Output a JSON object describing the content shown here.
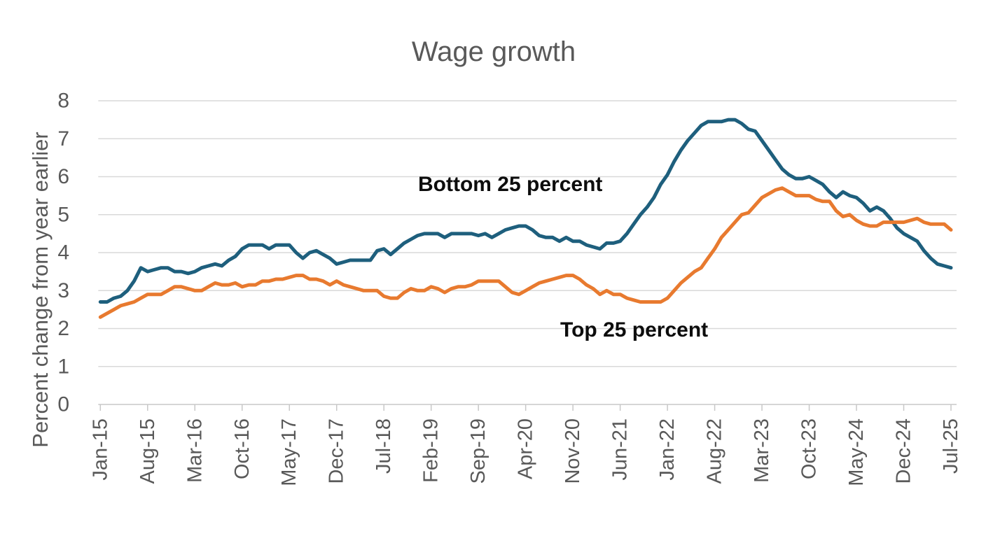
{
  "chart_data": {
    "type": "line",
    "title": "Wage growth",
    "ylabel": "Percent change from year earlier",
    "ylim": [
      0,
      8
    ],
    "y_ticks": [
      0,
      1,
      2,
      3,
      4,
      5,
      6,
      7,
      8
    ],
    "x_start": "Jan-2015",
    "x_end": "Jul-2025",
    "x_frequency": "monthly",
    "x_tick_labels": [
      "Jan-15",
      "Aug-15",
      "Mar-16",
      "Oct-16",
      "May-17",
      "Dec-17",
      "Jul-18",
      "Feb-19",
      "Sep-19",
      "Apr-20",
      "Nov-20",
      "Jun-21",
      "Jan-22",
      "Aug-22",
      "Mar-23",
      "Oct-23",
      "May-24",
      "Dec-24",
      "Jul-25"
    ],
    "x_tick_step_months": 7,
    "grid": "horizontal-only",
    "legend_position": "inline-annotations",
    "series": [
      {
        "name": "Bottom 25 percent",
        "color": "#1e5f7d",
        "values": [
          2.7,
          2.7,
          2.8,
          2.85,
          3.0,
          3.25,
          3.6,
          3.5,
          3.55,
          3.6,
          3.6,
          3.5,
          3.5,
          3.45,
          3.5,
          3.6,
          3.65,
          3.7,
          3.65,
          3.8,
          3.9,
          4.1,
          4.2,
          4.2,
          4.2,
          4.1,
          4.2,
          4.2,
          4.2,
          4.0,
          3.85,
          4.0,
          4.05,
          3.95,
          3.85,
          3.7,
          3.75,
          3.8,
          3.8,
          3.8,
          3.8,
          4.05,
          4.1,
          3.95,
          4.1,
          4.25,
          4.35,
          4.45,
          4.5,
          4.5,
          4.5,
          4.4,
          4.5,
          4.5,
          4.5,
          4.5,
          4.45,
          4.5,
          4.4,
          4.5,
          4.6,
          4.65,
          4.7,
          4.7,
          4.6,
          4.45,
          4.4,
          4.4,
          4.3,
          4.4,
          4.3,
          4.3,
          4.2,
          4.15,
          4.1,
          4.25,
          4.25,
          4.3,
          4.5,
          4.75,
          5.0,
          5.2,
          5.45,
          5.8,
          6.05,
          6.4,
          6.7,
          6.95,
          7.15,
          7.35,
          7.45,
          7.45,
          7.45,
          7.5,
          7.5,
          7.4,
          7.25,
          7.2,
          6.95,
          6.7,
          6.45,
          6.2,
          6.05,
          5.95,
          5.95,
          6.0,
          5.9,
          5.8,
          5.6,
          5.45,
          5.6,
          5.5,
          5.45,
          5.3,
          5.1,
          5.2,
          5.1,
          4.9,
          4.65,
          4.5,
          4.4,
          4.3,
          4.05,
          3.85,
          3.7,
          3.65,
          3.6
        ]
      },
      {
        "name": "Top 25 percent",
        "color": "#e87a2f",
        "values": [
          2.3,
          2.4,
          2.5,
          2.6,
          2.65,
          2.7,
          2.8,
          2.9,
          2.9,
          2.9,
          3.0,
          3.1,
          3.1,
          3.05,
          3.0,
          3.0,
          3.1,
          3.2,
          3.15,
          3.15,
          3.2,
          3.1,
          3.15,
          3.15,
          3.25,
          3.25,
          3.3,
          3.3,
          3.35,
          3.4,
          3.4,
          3.3,
          3.3,
          3.25,
          3.15,
          3.25,
          3.15,
          3.1,
          3.05,
          3.0,
          3.0,
          3.0,
          2.85,
          2.8,
          2.8,
          2.95,
          3.05,
          3.0,
          3.0,
          3.1,
          3.05,
          2.95,
          3.05,
          3.1,
          3.1,
          3.15,
          3.25,
          3.25,
          3.25,
          3.25,
          3.1,
          2.95,
          2.9,
          3.0,
          3.1,
          3.2,
          3.25,
          3.3,
          3.35,
          3.4,
          3.4,
          3.3,
          3.15,
          3.05,
          2.9,
          3.0,
          2.9,
          2.9,
          2.8,
          2.75,
          2.7,
          2.7,
          2.7,
          2.7,
          2.8,
          3.0,
          3.2,
          3.35,
          3.5,
          3.6,
          3.85,
          4.1,
          4.4,
          4.6,
          4.8,
          5.0,
          5.05,
          5.25,
          5.45,
          5.55,
          5.65,
          5.7,
          5.6,
          5.5,
          5.5,
          5.5,
          5.4,
          5.35,
          5.35,
          5.1,
          4.95,
          5.0,
          4.85,
          4.75,
          4.7,
          4.7,
          4.8,
          4.8,
          4.8,
          4.8,
          4.85,
          4.9,
          4.8,
          4.75,
          4.75,
          4.75,
          4.6
        ]
      }
    ],
    "annotations": [
      {
        "text": "Bottom 25 percent"
      },
      {
        "text": "Top 25 percent"
      }
    ]
  },
  "colors": {
    "grid": "#d9d9d9",
    "axis": "#c8c8c8",
    "tick_text": "#595959",
    "title_text": "#595959",
    "annotation_text": "#0d0d0d",
    "background": "#ffffff"
  }
}
